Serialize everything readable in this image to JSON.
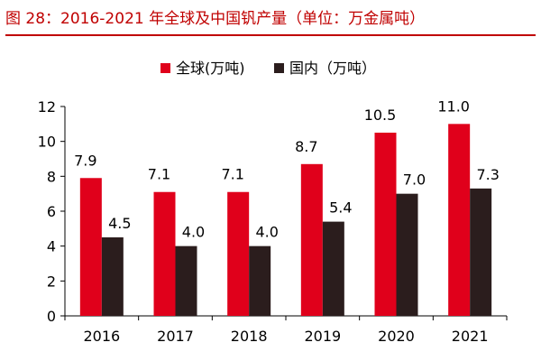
{
  "title": "图 28：2016-2021 年全球及中国钒产量（单位：万金属吨）",
  "colors": {
    "accent": "#c00000",
    "series_global": "#e0001b",
    "series_china": "#2b1d1d",
    "axis": "#000000"
  },
  "chart_data": {
    "type": "bar",
    "title": "图 28：2016-2021 年全球及中国钒产量（单位：万金属吨）",
    "xlabel": "",
    "ylabel": "",
    "categories": [
      "2016",
      "2017",
      "2018",
      "2019",
      "2020",
      "2021"
    ],
    "series": [
      {
        "name": "全球(万吨)",
        "values": [
          7.9,
          7.1,
          7.1,
          8.7,
          10.5,
          11.0
        ],
        "labels": [
          "7.9",
          "7.1",
          "7.1",
          "8.7",
          "10.5",
          "11.0"
        ]
      },
      {
        "name": "国内（万吨）",
        "values": [
          4.5,
          4.0,
          4.0,
          5.4,
          7.0,
          7.3
        ],
        "labels": [
          "4.5",
          "4.0",
          "4.0",
          "5.4",
          "7.0",
          "7.3"
        ]
      }
    ],
    "ylim": [
      0,
      12
    ],
    "yticks": [
      0,
      2,
      4,
      6,
      8,
      10,
      12
    ],
    "legend_position": "top",
    "grid": false
  }
}
